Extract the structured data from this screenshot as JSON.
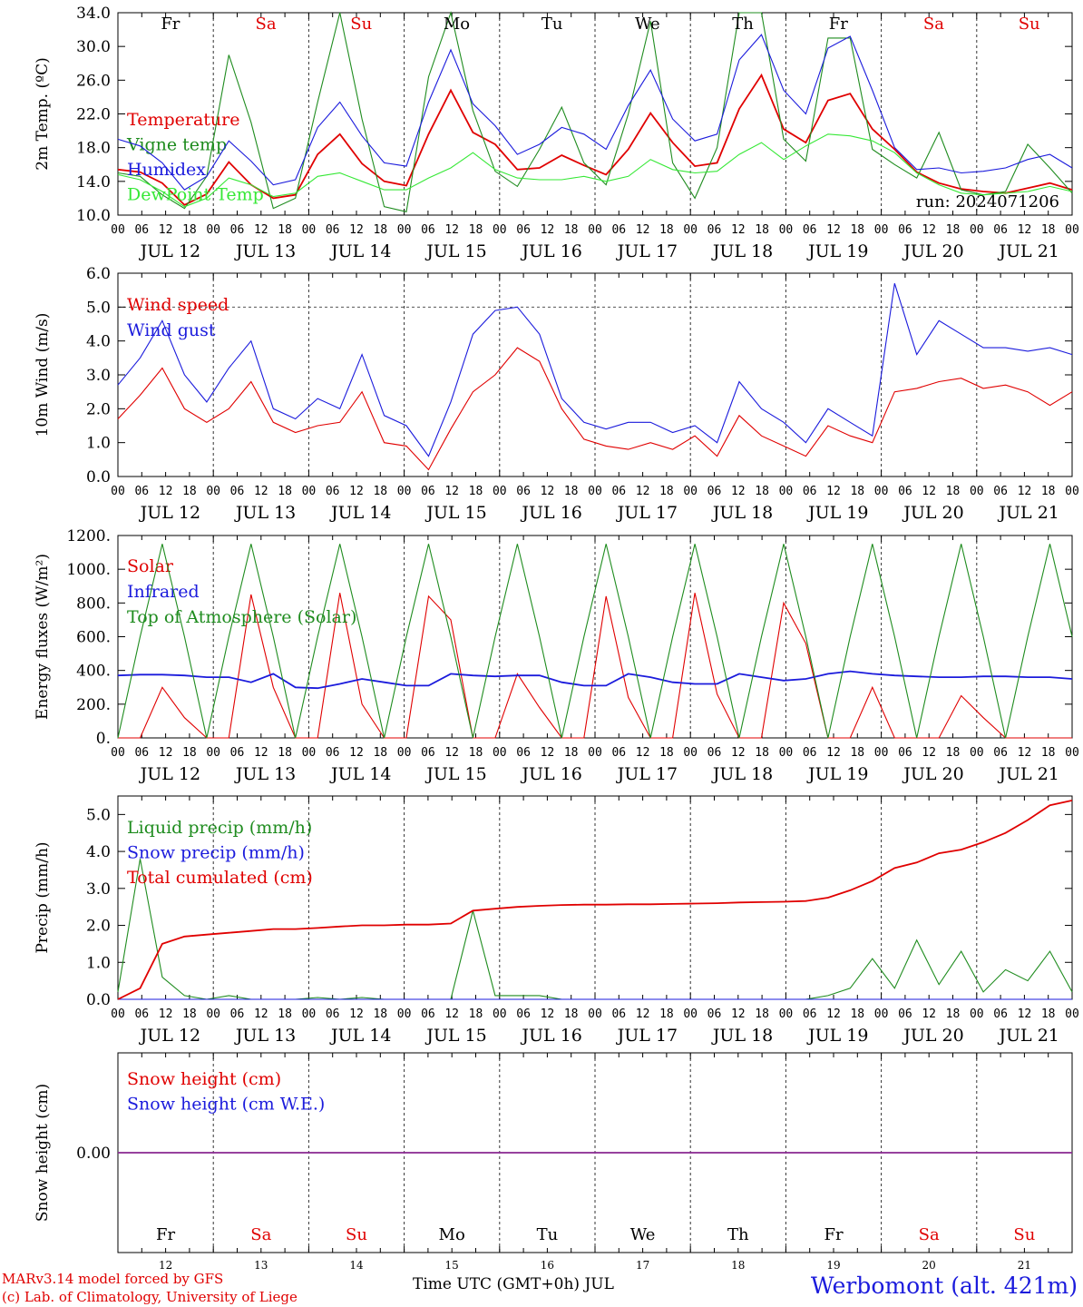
{
  "chart_data": {
    "run_label": "run: 2024071206",
    "x_ticks": [
      "00",
      "06",
      "12",
      "18"
    ],
    "dates": [
      "JUL 12",
      "JUL 13",
      "JUL 14",
      "JUL 15",
      "JUL 16",
      "JUL 17",
      "JUL 18",
      "JUL 19",
      "JUL 20",
      "JUL 21"
    ],
    "day_names": [
      "Fr",
      "Sa",
      "Su",
      "Mo",
      "Tu",
      "We",
      "Th",
      "Fr",
      "Sa",
      "Su"
    ],
    "day_colors": [
      "#000000",
      "#e00000",
      "#e00000",
      "#000000",
      "#000000",
      "#000000",
      "#000000",
      "#000000",
      "#e00000",
      "#e00000"
    ],
    "day_numbers": [
      "12",
      "13",
      "14",
      "15",
      "16",
      "17",
      "18",
      "19",
      "20",
      "21"
    ],
    "x_axis_label": "Time UTC (GMT+0h) JUL",
    "panels": [
      {
        "id": "temperature",
        "type": "line",
        "ylabel": "2m Temp. (ºC)",
        "ylim": [
          10,
          34
        ],
        "yticks": [
          "10.0",
          "14.0",
          "18.0",
          "22.0",
          "26.0",
          "30.0",
          "34.0"
        ],
        "series": [
          {
            "name": "Temperature",
            "color": "#e00000",
            "values": [
              15.4,
              15.1,
              13.8,
              11.2,
              12.5,
              16.3,
              13.6,
              12.0,
              12.4,
              17.2,
              19.6,
              16.1,
              14.0,
              13.5,
              19.6,
              24.8,
              19.8,
              18.4,
              15.4,
              15.6,
              17.1,
              15.9,
              14.8,
              17.8,
              22.1,
              18.6,
              15.8,
              16.2,
              22.6,
              26.6,
              20.2,
              18.6,
              23.6,
              24.4,
              20.2,
              17.8,
              15.1,
              13.8,
              13.1,
              12.8,
              12.6,
              13.2,
              13.8,
              13.0
            ]
          },
          {
            "name": "Vigne temp",
            "color": "#1f8c1f",
            "values": [
              15.0,
              14.6,
              12.4,
              10.8,
              14.6,
              29.0,
              21.0,
              10.8,
              12.0,
              23.4,
              34.0,
              21.4,
              11.0,
              10.4,
              26.4,
              34.0,
              22.4,
              15.2,
              13.4,
              17.8,
              22.8,
              16.2,
              13.6,
              22.0,
              33.0,
              16.2,
              12.0,
              18.0,
              34.0,
              34.0,
              19.0,
              16.4,
              31.0,
              31.0,
              17.8,
              16.0,
              14.4,
              19.8,
              13.0,
              12.4,
              12.8,
              18.4,
              15.6,
              12.6
            ]
          },
          {
            "name": "Humidex",
            "color": "#1b1bdc",
            "values": [
              19.0,
              18.2,
              16.2,
              13.0,
              14.6,
              18.8,
              16.4,
              13.6,
              14.2,
              20.4,
              23.4,
              19.4,
              16.2,
              15.8,
              23.4,
              29.6,
              23.2,
              20.6,
              17.2,
              18.4,
              20.4,
              19.6,
              17.8,
              23.0,
              27.2,
              21.4,
              18.8,
              19.6,
              28.4,
              31.4,
              24.8,
              22.0,
              29.8,
              31.2,
              24.8,
              18.0,
              15.4,
              15.6,
              15.0,
              15.2,
              15.6,
              16.6,
              17.2,
              15.6
            ]
          },
          {
            "name": "DewPoint Temp",
            "color": "#36e836",
            "values": [
              14.8,
              14.2,
              12.8,
              11.0,
              12.0,
              14.4,
              13.6,
              12.2,
              12.6,
              14.6,
              15.0,
              14.0,
              13.0,
              13.0,
              14.4,
              15.6,
              17.4,
              15.4,
              14.4,
              14.2,
              14.2,
              14.6,
              14.0,
              14.6,
              16.6,
              15.4,
              15.0,
              15.2,
              17.2,
              18.6,
              16.6,
              18.2,
              19.6,
              19.4,
              18.8,
              17.4,
              15.0,
              13.6,
              12.6,
              12.4,
              12.6,
              12.8,
              13.4,
              12.8
            ]
          }
        ]
      },
      {
        "id": "wind",
        "type": "line",
        "ylabel": "10m Wind (m/s)",
        "ylim": [
          0,
          6
        ],
        "yticks": [
          "0.0",
          "1.0",
          "2.0",
          "3.0",
          "4.0",
          "5.0",
          "6.0"
        ],
        "dashed_at": 5.0,
        "series": [
          {
            "name": "Wind speed",
            "color": "#e00000",
            "values": [
              1.7,
              2.4,
              3.2,
              2.0,
              1.6,
              2.0,
              2.8,
              1.6,
              1.3,
              1.5,
              1.6,
              2.5,
              1.0,
              0.9,
              0.2,
              1.4,
              2.5,
              3.0,
              3.8,
              3.4,
              2.0,
              1.1,
              0.9,
              0.8,
              1.0,
              0.8,
              1.2,
              0.6,
              1.8,
              1.2,
              0.9,
              0.6,
              1.5,
              1.2,
              1.0,
              2.5,
              2.6,
              2.8,
              2.9,
              2.6,
              2.7,
              2.5,
              2.1,
              2.5
            ]
          },
          {
            "name": "Wind gust",
            "color": "#1b1bdc",
            "values": [
              2.7,
              3.5,
              4.6,
              3.0,
              2.2,
              3.2,
              4.0,
              2.0,
              1.7,
              2.3,
              2.0,
              3.6,
              1.8,
              1.5,
              0.6,
              2.2,
              4.2,
              4.9,
              5.0,
              4.2,
              2.3,
              1.6,
              1.4,
              1.6,
              1.6,
              1.3,
              1.5,
              1.0,
              2.8,
              2.0,
              1.6,
              1.0,
              2.0,
              1.6,
              1.2,
              5.7,
              3.6,
              4.6,
              4.2,
              3.8,
              3.8,
              3.7,
              3.8,
              3.6
            ]
          }
        ]
      },
      {
        "id": "energy",
        "type": "line",
        "ylabel": "Energy fluxes (W/m²)",
        "ylim": [
          0,
          1200
        ],
        "yticks": [
          "0.",
          "200.",
          "400.",
          "600.",
          "800.",
          "1000.",
          "1200."
        ],
        "series": [
          {
            "name": "Solar",
            "color": "#e00000",
            "values": [
              0,
              0,
              300,
              120,
              0,
              0,
              850,
              300,
              0,
              0,
              860,
              200,
              0,
              0,
              840,
              700,
              0,
              0,
              380,
              180,
              0,
              0,
              840,
              240,
              0,
              0,
              860,
              260,
              0,
              0,
              800,
              560,
              0,
              0,
              300,
              0,
              0,
              0,
              250,
              120,
              0,
              0,
              0,
              0
            ]
          },
          {
            "name": "Infrared",
            "color": "#1b1bdc",
            "values": [
              370,
              375,
              375,
              370,
              360,
              360,
              330,
              380,
              300,
              295,
              320,
              350,
              330,
              310,
              310,
              380,
              370,
              365,
              370,
              370,
              330,
              310,
              310,
              380,
              360,
              330,
              320,
              320,
              380,
              360,
              340,
              350,
              380,
              395,
              380,
              370,
              365,
              360,
              360,
              365,
              365,
              360,
              360,
              350
            ]
          },
          {
            "name": "Top of Atmosphere (Solar)",
            "color": "#1f8c1f",
            "values": [
              0,
              600,
              1150,
              600,
              0,
              600,
              1150,
              600,
              0,
              600,
              1150,
              600,
              0,
              600,
              1150,
              600,
              0,
              600,
              1150,
              600,
              0,
              600,
              1150,
              600,
              0,
              600,
              1150,
              600,
              0,
              600,
              1150,
              600,
              0,
              600,
              1150,
              600,
              0,
              600,
              1150,
              600,
              0,
              600,
              1150,
              600
            ]
          }
        ]
      },
      {
        "id": "precip",
        "type": "line",
        "ylabel": "Precip (mm/h)",
        "ylim": [
          0,
          5.5
        ],
        "yticks": [
          "0.0",
          "1.0",
          "2.0",
          "3.0",
          "4.0",
          "5.0"
        ],
        "series": [
          {
            "name": "Liquid precip (mm/h)",
            "color": "#1f8c1f",
            "values": [
              0.2,
              3.8,
              0.6,
              0.1,
              0.0,
              0.1,
              0.0,
              0.0,
              0.0,
              0.05,
              0.0,
              0.05,
              0.0,
              0.0,
              0.0,
              0.0,
              2.4,
              0.1,
              0.1,
              0.1,
              0.0,
              0.0,
              0.0,
              0.0,
              0.0,
              0.0,
              0.0,
              0.0,
              0.0,
              0.0,
              0.0,
              0.0,
              0.1,
              0.3,
              1.1,
              0.3,
              1.6,
              0.4,
              1.3,
              0.2,
              0.8,
              0.5,
              1.3,
              0.2
            ]
          },
          {
            "name": "Snow precip (mm/h)",
            "color": "#1b1bdc",
            "values": [
              0,
              0,
              0,
              0,
              0,
              0,
              0,
              0,
              0,
              0,
              0,
              0,
              0,
              0,
              0,
              0,
              0,
              0,
              0,
              0,
              0,
              0,
              0,
              0,
              0,
              0,
              0,
              0,
              0,
              0,
              0,
              0,
              0,
              0,
              0,
              0,
              0,
              0,
              0,
              0,
              0,
              0,
              0,
              0
            ]
          },
          {
            "name": "Total cumulated (cm)",
            "color": "#e00000",
            "values": [
              0.0,
              0.3,
              1.5,
              1.7,
              1.75,
              1.8,
              1.85,
              1.9,
              1.9,
              1.93,
              1.97,
              2.0,
              2.0,
              2.02,
              2.02,
              2.05,
              2.4,
              2.45,
              2.5,
              2.53,
              2.55,
              2.56,
              2.56,
              2.57,
              2.57,
              2.58,
              2.59,
              2.6,
              2.62,
              2.63,
              2.64,
              2.66,
              2.75,
              2.95,
              3.2,
              3.55,
              3.7,
              3.95,
              4.05,
              4.25,
              4.5,
              4.85,
              5.25,
              5.38
            ]
          }
        ]
      },
      {
        "id": "snow",
        "type": "line",
        "ylabel": "Snow height (cm)",
        "ylim": [
          -1,
          1
        ],
        "yticks": [
          "0.00"
        ],
        "series": [
          {
            "name": "Snow height (cm)",
            "color": "#e00000",
            "values": [
              0,
              0
            ]
          },
          {
            "name": "Snow height (cm W.E.)",
            "color": "#1b1bdc",
            "values": [
              0,
              0
            ]
          }
        ]
      }
    ]
  },
  "footer": {
    "model_line": "MARv3.14 model forced by GFS",
    "copyright_line": "(c) Lab. of Climatology, University of Liege",
    "station_title": "Werbomont (alt. 421m)"
  }
}
